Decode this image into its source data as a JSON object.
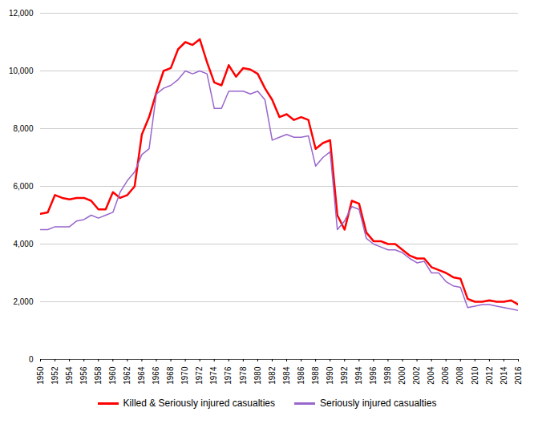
{
  "chart_data": {
    "type": "line",
    "x": [
      1950,
      1951,
      1952,
      1953,
      1954,
      1955,
      1956,
      1957,
      1958,
      1959,
      1960,
      1961,
      1962,
      1963,
      1964,
      1965,
      1966,
      1967,
      1968,
      1969,
      1970,
      1971,
      1972,
      1973,
      1974,
      1975,
      1976,
      1977,
      1978,
      1979,
      1980,
      1981,
      1982,
      1983,
      1984,
      1985,
      1986,
      1987,
      1988,
      1989,
      1990,
      1991,
      1992,
      1993,
      1994,
      1995,
      1996,
      1997,
      1998,
      1999,
      2000,
      2001,
      2002,
      2003,
      2004,
      2005,
      2006,
      2007,
      2008,
      2009,
      2010,
      2011,
      2012,
      2013,
      2014,
      2015,
      2016
    ],
    "series": [
      {
        "name": "Killed & Seriously injured casualties",
        "color": "#FF0000",
        "values": [
          5050,
          5100,
          5700,
          5600,
          5550,
          5600,
          5600,
          5500,
          5200,
          5200,
          5800,
          5600,
          5700,
          6000,
          7800,
          8400,
          9250,
          10000,
          10100,
          10750,
          11000,
          10900,
          11100,
          10300,
          9600,
          9500,
          10200,
          9800,
          10100,
          10050,
          9900,
          9400,
          9000,
          8400,
          8500,
          8300,
          8400,
          8300,
          7300,
          7500,
          7600,
          5000,
          4500,
          5500,
          5400,
          4400,
          4100,
          4100,
          4000,
          4000,
          3800,
          3600,
          3500,
          3500,
          3200,
          3100,
          3000,
          2850,
          2800,
          2100,
          2000,
          2000,
          2050,
          2000,
          2000,
          2050,
          1900
        ]
      },
      {
        "name": "Seriously injured casualties",
        "color": "#9966CC",
        "values": [
          4500,
          4500,
          4600,
          4600,
          4600,
          4800,
          4850,
          5000,
          4900,
          5000,
          5100,
          5800,
          6200,
          6500,
          7100,
          7300,
          9200,
          9400,
          9500,
          9700,
          10000,
          9900,
          10000,
          9900,
          8700,
          8700,
          9300,
          9300,
          9300,
          9200,
          9300,
          9000,
          7600,
          7700,
          7800,
          7700,
          7700,
          7750,
          6700,
          7000,
          7200,
          4500,
          4800,
          5300,
          5200,
          4200,
          4000,
          3900,
          3800,
          3800,
          3700,
          3500,
          3350,
          3400,
          3000,
          3000,
          2700,
          2550,
          2500,
          1800,
          1850,
          1900,
          1900,
          1850,
          1800,
          1750,
          1700
        ]
      }
    ],
    "xlim": [
      1950,
      2016
    ],
    "xticks": [
      1950,
      1952,
      1954,
      1956,
      1958,
      1960,
      1962,
      1964,
      1966,
      1968,
      1970,
      1972,
      1974,
      1976,
      1978,
      1980,
      1982,
      1984,
      1986,
      1988,
      1990,
      1992,
      1994,
      1996,
      1998,
      2000,
      2002,
      2004,
      2006,
      2008,
      2010,
      2012,
      2014,
      2016
    ],
    "ylim": [
      0,
      12000
    ],
    "yticks": [
      0,
      {
        "value": 2000,
        "label": "2,000"
      },
      {
        "value": 4000,
        "label": "4,000"
      },
      {
        "value": 6000,
        "label": "6,000"
      },
      {
        "value": 8000,
        "label": "8,000"
      },
      {
        "value": 10000,
        "label": "10,000"
      },
      {
        "value": 12000,
        "label": "12,000"
      }
    ],
    "grid": true,
    "legend": "bottom"
  }
}
